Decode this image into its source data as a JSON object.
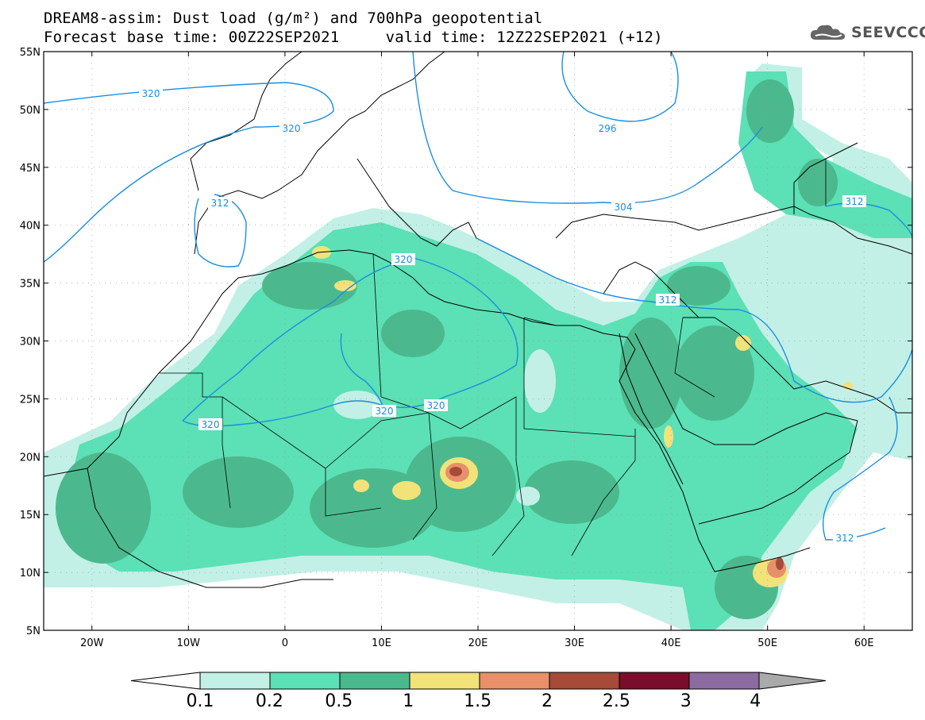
{
  "header": {
    "line1": "DREAM8-assim: Dust load (g/m²) and 700hPa geopotential",
    "line2": "Forecast base time: 00Z22SEP2021     valid time: 12Z22SEP2021 (+12)"
  },
  "brand": {
    "name": "SEEVCCC",
    "icon": "cloud-logo-icon"
  },
  "map": {
    "lon_range": [
      -25,
      65
    ],
    "lat_range": [
      5,
      55
    ],
    "lat_ticks": [
      "55N",
      "50N",
      "45N",
      "40N",
      "35N",
      "30N",
      "25N",
      "20N",
      "15N",
      "10N",
      "5N"
    ],
    "lon_ticks": [
      "20W",
      "10W",
      "0",
      "10E",
      "20E",
      "30E",
      "40E",
      "50E",
      "60E"
    ],
    "contour_color": "#1a8ee0",
    "contour_labels": [
      "320",
      "320",
      "296",
      "312",
      "304",
      "320",
      "312",
      "312",
      "320",
      "320",
      "320",
      "312"
    ]
  },
  "colorbar": {
    "levels": [
      "0.1",
      "0.2",
      "0.5",
      "1",
      "1.5",
      "2",
      "2.5",
      "3",
      "4"
    ],
    "colors": [
      "#c2f0e6",
      "#5ce0b5",
      "#4bb98d",
      "#f2e27a",
      "#e8906a",
      "#a64a3a",
      "#7a0d2a",
      "#8c6ca0",
      "#aaaaaa"
    ]
  }
}
